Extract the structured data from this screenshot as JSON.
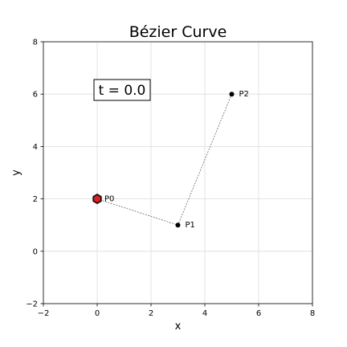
{
  "chart_data": {
    "type": "scatter",
    "title": "Bézier Curve",
    "xlabel": "x",
    "ylabel": "y",
    "xlim": [
      -2,
      8
    ],
    "ylim": [
      -2,
      8
    ],
    "xticks": [
      -2,
      0,
      2,
      4,
      6,
      8
    ],
    "yticks": [
      -2,
      0,
      2,
      4,
      6,
      8
    ],
    "grid": true,
    "annotation": "t = 0.0",
    "control_points": [
      {
        "label": "P0",
        "x": 0,
        "y": 2
      },
      {
        "label": "P1",
        "x": 3,
        "y": 1
      },
      {
        "label": "P2",
        "x": 5,
        "y": 6
      }
    ],
    "curve_point": {
      "x": 0,
      "y": 2,
      "t": 0.0
    },
    "colors": {
      "control_point": "#000000",
      "control_polygon": "#555555",
      "curve_point_fill": "#e02020",
      "curve_point_edge": "#111111",
      "grid": "#dcdcdc"
    }
  }
}
